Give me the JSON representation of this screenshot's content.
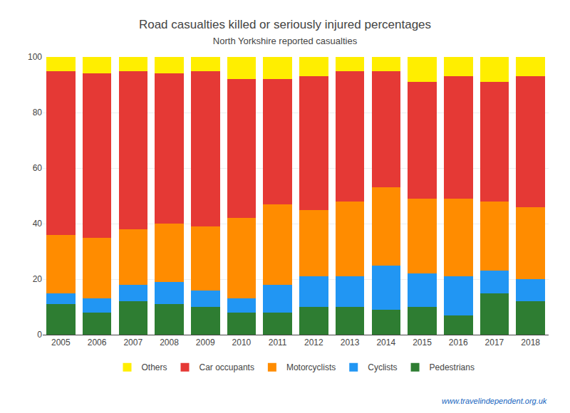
{
  "chart_data": {
    "type": "bar",
    "stacked": true,
    "title": "Road casualties killed or seriously injured percentages",
    "subtitle": "North Yorkshire reported casualties",
    "categories": [
      "2005",
      "2006",
      "2007",
      "2008",
      "2009",
      "2010",
      "2011",
      "2012",
      "2013",
      "2014",
      "2015",
      "2016",
      "2017",
      "2018"
    ],
    "series": [
      {
        "name": "Pedestrians",
        "color": "#2e7d32",
        "values": [
          11,
          8,
          12,
          11,
          10,
          8,
          8,
          10,
          10,
          9,
          10,
          7,
          15,
          12
        ]
      },
      {
        "name": "Cyclists",
        "color": "#2196f3",
        "values": [
          4,
          5,
          6,
          8,
          6,
          5,
          10,
          11,
          11,
          16,
          12,
          14,
          8,
          8
        ]
      },
      {
        "name": "Motorcyclists",
        "color": "#ff8c00",
        "values": [
          21,
          22,
          20,
          21,
          23,
          29,
          29,
          24,
          27,
          28,
          27,
          28,
          25,
          26
        ]
      },
      {
        "name": "Car occupants",
        "color": "#e53935",
        "values": [
          59,
          59,
          57,
          54,
          56,
          50,
          45,
          48,
          47,
          42,
          42,
          44,
          43,
          47
        ]
      },
      {
        "name": "Others",
        "color": "#ffee00",
        "values": [
          5,
          6,
          5,
          6,
          5,
          8,
          8,
          7,
          5,
          5,
          9,
          7,
          9,
          7
        ]
      }
    ],
    "ylim": [
      0,
      100
    ],
    "yticks": [
      0,
      20,
      40,
      60,
      80,
      100
    ],
    "grid": true,
    "legend": "bottom",
    "annotations": [
      "www.travelindependent.org.uk"
    ]
  }
}
